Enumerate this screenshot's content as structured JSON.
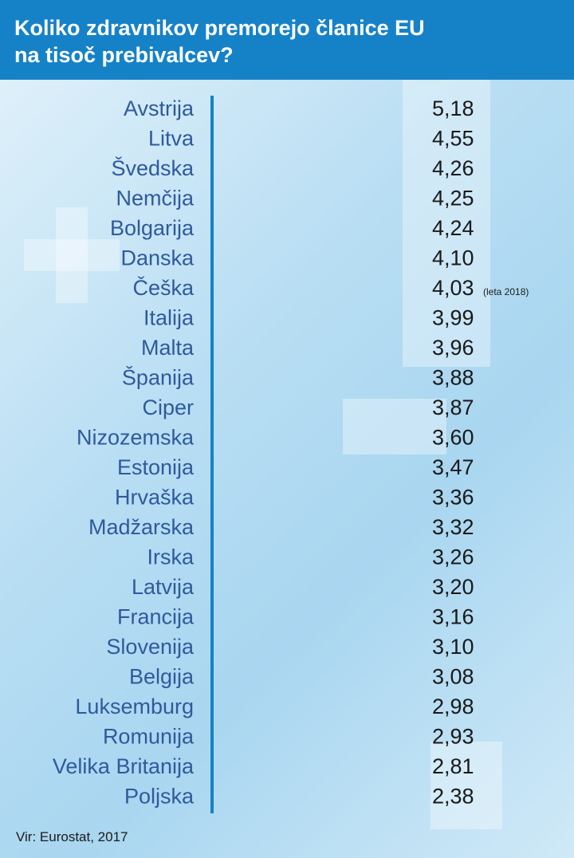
{
  "header": {
    "title": "Koliko zdravnikov premorejo članice EU na tisoč prebivalcev?"
  },
  "source": "Vir: Eurostat, 2017",
  "colors": {
    "header_bg": "#1582c8",
    "country_text": "#2f5a9c",
    "icon": "#1592d8",
    "axis": "#1582c8"
  },
  "icon": "doctor-icon",
  "chart_data": {
    "type": "bar",
    "title": "Koliko zdravnikov premorejo članice EU na tisoč prebivalcev?",
    "categories": [
      "Avstrija",
      "Litva",
      "Švedska",
      "Nemčija",
      "Bolgarija",
      "Danska",
      "Češka",
      "Italija",
      "Malta",
      "Španija",
      "Ciper",
      "Nizozemska",
      "Estonija",
      "Hrvaška",
      "Madžarska",
      "Irska",
      "Latvija",
      "Francija",
      "Slovenija",
      "Belgija",
      "Luksemburg",
      "Romunija",
      "Velika Britanija",
      "Poljska"
    ],
    "values": [
      5.18,
      4.55,
      4.26,
      4.25,
      4.24,
      4.1,
      4.03,
      3.99,
      3.96,
      3.88,
      3.87,
      3.6,
      3.47,
      3.36,
      3.32,
      3.26,
      3.2,
      3.16,
      3.1,
      3.08,
      2.98,
      2.93,
      2.81,
      2.38
    ],
    "value_labels": [
      "5,18",
      "4,55",
      "4,26",
      "4,25",
      "4,24",
      "4,10",
      "4,03",
      "3,99",
      "3,96",
      "3,88",
      "3,87",
      "3,60",
      "3,47",
      "3,36",
      "3,32",
      "3,26",
      "3,20",
      "3,16",
      "3,10",
      "3,08",
      "2,98",
      "2,93",
      "2,81",
      "2,38"
    ],
    "annotations": [
      {
        "category": "Češka",
        "text": "(leta 2018)"
      }
    ],
    "orientation": "horizontal",
    "mark": "pictogram"
  }
}
